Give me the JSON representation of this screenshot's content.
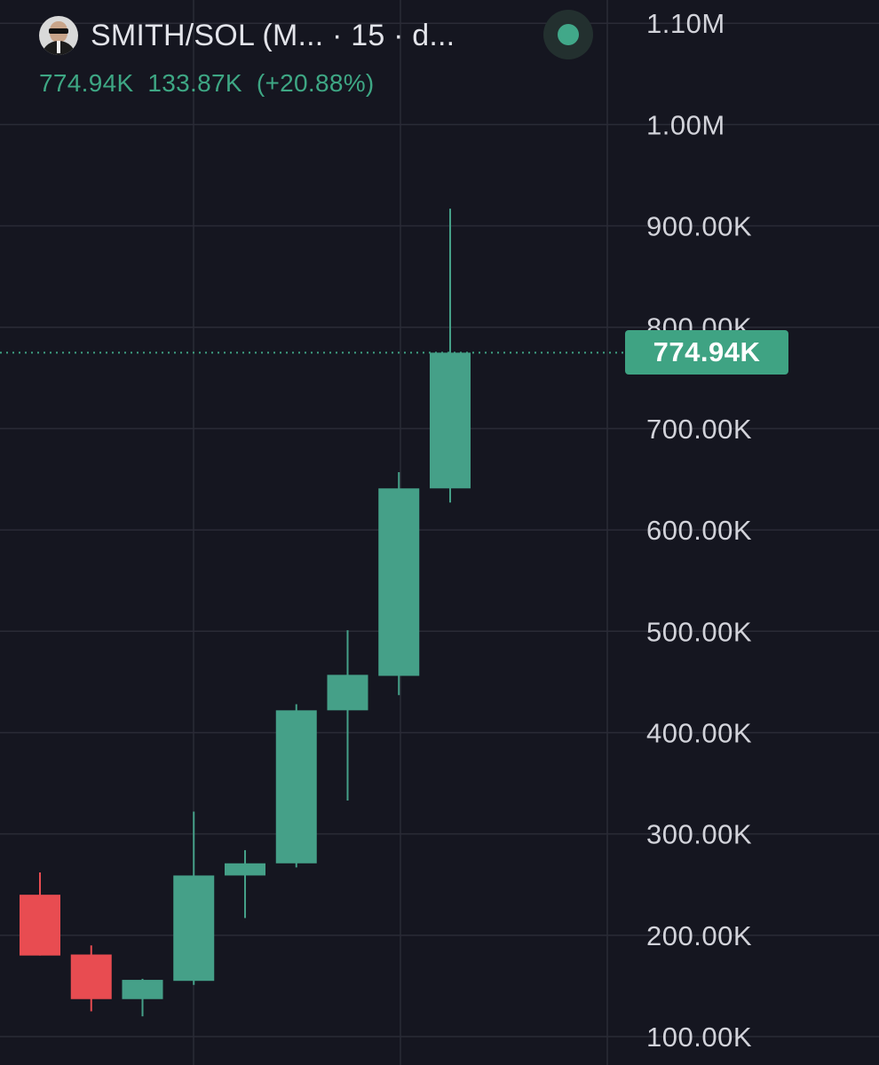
{
  "header": {
    "pair_title": "SMITH/SOL (M... · 15 · d...",
    "avatar_icon": "agent-smith-avatar-icon",
    "status_icon": "live-status-dot-icon",
    "status_color": "#41a889",
    "ohlc_close": "774.94K",
    "ohlc_change": "133.87K",
    "ohlc_change_pct": "(+20.88%)"
  },
  "price_tag": {
    "label": "774.94K",
    "value": 774940
  },
  "colors": {
    "background": "#151620",
    "up": "#45a088",
    "down": "#e84c51",
    "grid": "#2a2b36",
    "axis_text": "#d2d3da",
    "price_line": "#3fa383"
  },
  "chart_data": {
    "type": "candlestick",
    "title": "SMITH/SOL (M... · 15 · d...",
    "y_axis": {
      "position": "right",
      "ticks": [
        {
          "value": 100000,
          "label": "100.00K"
        },
        {
          "value": 200000,
          "label": "200.00K"
        },
        {
          "value": 300000,
          "label": "300.00K"
        },
        {
          "value": 400000,
          "label": "400.00K"
        },
        {
          "value": 500000,
          "label": "500.00K"
        },
        {
          "value": 600000,
          "label": "600.00K"
        },
        {
          "value": 700000,
          "label": "700.00K"
        },
        {
          "value": 800000,
          "label": "800.00K"
        },
        {
          "value": 900000,
          "label": "900.00K"
        },
        {
          "value": 1000000,
          "label": "1.00M"
        },
        {
          "value": 1100000,
          "label": "1.10M"
        }
      ],
      "ylim": [
        60000,
        1140000
      ]
    },
    "grid": true,
    "last_price": 774940,
    "candles": [
      {
        "open": 240000,
        "high": 262000,
        "low": 180000,
        "close": 180000
      },
      {
        "open": 181000,
        "high": 190000,
        "low": 125000,
        "close": 137000
      },
      {
        "open": 137000,
        "high": 157000,
        "low": 120000,
        "close": 156000
      },
      {
        "open": 155000,
        "high": 322000,
        "low": 151000,
        "close": 259000
      },
      {
        "open": 259000,
        "high": 284000,
        "low": 217000,
        "close": 271000
      },
      {
        "open": 271000,
        "high": 428000,
        "low": 267000,
        "close": 422000
      },
      {
        "open": 422000,
        "high": 501000,
        "low": 333000,
        "close": 457000
      },
      {
        "open": 456000,
        "high": 657000,
        "low": 437000,
        "close": 641000
      },
      {
        "open": 641000,
        "high": 917000,
        "low": 627000,
        "close": 774940
      }
    ]
  }
}
